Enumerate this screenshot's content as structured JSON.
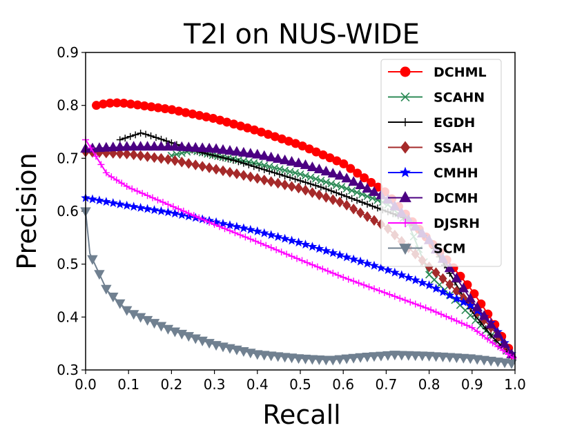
{
  "chart_data": {
    "type": "line",
    "title": "T2I on NUS-WIDE",
    "xlabel": "Recall",
    "ylabel": "Precision",
    "xlim": [
      0.0,
      1.0
    ],
    "ylim": [
      0.3,
      0.9
    ],
    "xticks": [
      "0.0",
      "0.1",
      "0.2",
      "0.3",
      "0.4",
      "0.5",
      "0.6",
      "0.7",
      "0.8",
      "0.9",
      "1.0"
    ],
    "yticks": [
      "0.3",
      "0.4",
      "0.5",
      "0.6",
      "0.7",
      "0.8",
      "0.9"
    ],
    "legend_position": "top-right",
    "series": [
      {
        "name": "DCHML",
        "color": "#ff0000",
        "marker": "circle",
        "points": [
          [
            0.025,
            0.8
          ],
          [
            0.05,
            0.804
          ],
          [
            0.08,
            0.805
          ],
          [
            0.12,
            0.801
          ],
          [
            0.2,
            0.792
          ],
          [
            0.3,
            0.775
          ],
          [
            0.4,
            0.752
          ],
          [
            0.5,
            0.725
          ],
          [
            0.6,
            0.69
          ],
          [
            0.7,
            0.635
          ],
          [
            0.8,
            0.545
          ],
          [
            0.85,
            0.5
          ],
          [
            0.9,
            0.45
          ],
          [
            0.95,
            0.39
          ],
          [
            1.0,
            0.32
          ]
        ]
      },
      {
        "name": "SCAHN",
        "color": "#2e8b57",
        "marker": "x",
        "points": [
          [
            0.2,
            0.705
          ],
          [
            0.25,
            0.715
          ],
          [
            0.3,
            0.705
          ],
          [
            0.4,
            0.69
          ],
          [
            0.5,
            0.67
          ],
          [
            0.6,
            0.645
          ],
          [
            0.7,
            0.615
          ],
          [
            0.75,
            0.58
          ],
          [
            0.8,
            0.48
          ],
          [
            0.85,
            0.44
          ],
          [
            0.9,
            0.4
          ],
          [
            0.95,
            0.36
          ],
          [
            1.0,
            0.32
          ]
        ]
      },
      {
        "name": "EGDH",
        "color": "#000000",
        "marker": "plus",
        "points": [
          [
            0.08,
            0.735
          ],
          [
            0.13,
            0.748
          ],
          [
            0.18,
            0.735
          ],
          [
            0.25,
            0.715
          ],
          [
            0.35,
            0.695
          ],
          [
            0.45,
            0.67
          ],
          [
            0.55,
            0.645
          ],
          [
            0.65,
            0.615
          ],
          [
            0.75,
            0.585
          ],
          [
            0.8,
            0.545
          ],
          [
            0.85,
            0.48
          ],
          [
            0.9,
            0.41
          ],
          [
            0.95,
            0.36
          ],
          [
            1.0,
            0.32
          ]
        ]
      },
      {
        "name": "SSAH",
        "color": "#a52a2a",
        "marker": "diamond",
        "points": [
          [
            0.0,
            0.712
          ],
          [
            0.1,
            0.708
          ],
          [
            0.2,
            0.697
          ],
          [
            0.3,
            0.68
          ],
          [
            0.4,
            0.662
          ],
          [
            0.5,
            0.643
          ],
          [
            0.6,
            0.615
          ],
          [
            0.7,
            0.57
          ],
          [
            0.8,
            0.495
          ],
          [
            0.85,
            0.46
          ],
          [
            0.9,
            0.42
          ],
          [
            0.95,
            0.375
          ],
          [
            1.0,
            0.32
          ]
        ]
      },
      {
        "name": "CMHH",
        "color": "#0000ff",
        "marker": "star",
        "points": [
          [
            0.0,
            0.625
          ],
          [
            0.1,
            0.61
          ],
          [
            0.2,
            0.597
          ],
          [
            0.3,
            0.58
          ],
          [
            0.4,
            0.562
          ],
          [
            0.5,
            0.54
          ],
          [
            0.6,
            0.515
          ],
          [
            0.7,
            0.49
          ],
          [
            0.8,
            0.46
          ],
          [
            0.9,
            0.42
          ],
          [
            0.95,
            0.385
          ],
          [
            1.0,
            0.32
          ]
        ]
      },
      {
        "name": "DCMH",
        "color": "#4b0082",
        "marker": "triangle-up",
        "points": [
          [
            0.0,
            0.718
          ],
          [
            0.1,
            0.722
          ],
          [
            0.2,
            0.722
          ],
          [
            0.3,
            0.718
          ],
          [
            0.4,
            0.707
          ],
          [
            0.5,
            0.69
          ],
          [
            0.6,
            0.665
          ],
          [
            0.7,
            0.625
          ],
          [
            0.8,
            0.545
          ],
          [
            0.85,
            0.49
          ],
          [
            0.9,
            0.43
          ],
          [
            0.95,
            0.38
          ],
          [
            1.0,
            0.32
          ]
        ]
      },
      {
        "name": "DJSRH",
        "color": "#ff00ff",
        "marker": "plus",
        "points": [
          [
            0.0,
            0.735
          ],
          [
            0.05,
            0.67
          ],
          [
            0.1,
            0.645
          ],
          [
            0.2,
            0.61
          ],
          [
            0.3,
            0.575
          ],
          [
            0.4,
            0.542
          ],
          [
            0.5,
            0.508
          ],
          [
            0.6,
            0.475
          ],
          [
            0.7,
            0.445
          ],
          [
            0.8,
            0.415
          ],
          [
            0.9,
            0.38
          ],
          [
            1.0,
            0.32
          ]
        ]
      },
      {
        "name": "SCM",
        "color": "#708090",
        "marker": "triangle-down",
        "points": [
          [
            0.0,
            0.6
          ],
          [
            0.01,
            0.52
          ],
          [
            0.05,
            0.45
          ],
          [
            0.1,
            0.41
          ],
          [
            0.2,
            0.375
          ],
          [
            0.3,
            0.348
          ],
          [
            0.4,
            0.33
          ],
          [
            0.5,
            0.322
          ],
          [
            0.57,
            0.319
          ],
          [
            0.65,
            0.325
          ],
          [
            0.72,
            0.329
          ],
          [
            0.8,
            0.327
          ],
          [
            0.9,
            0.322
          ],
          [
            1.0,
            0.312
          ]
        ]
      }
    ]
  }
}
